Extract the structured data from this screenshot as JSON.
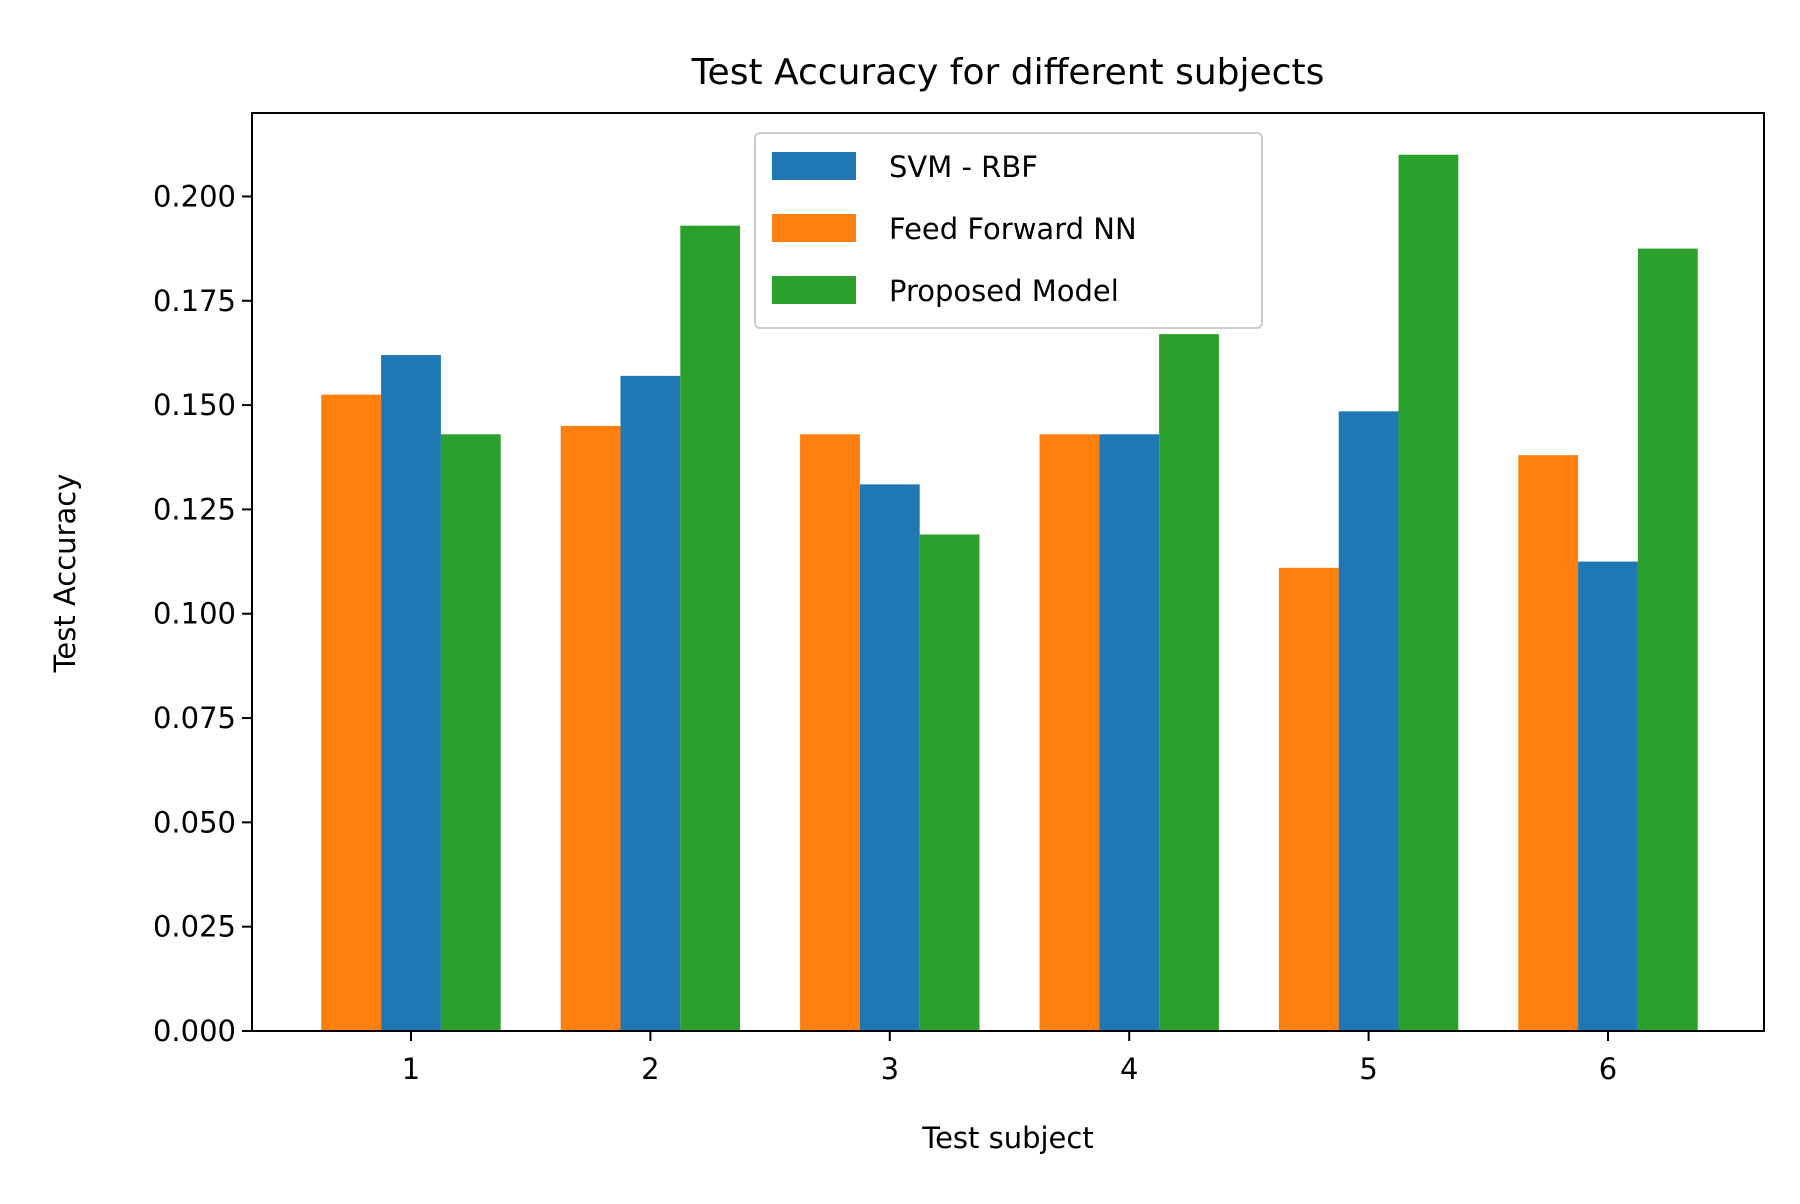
{
  "chart_data": {
    "type": "bar",
    "title": "Test Accuracy for different subjects",
    "xlabel": "Test subject",
    "ylabel": "Test Accuracy",
    "categories": [
      "1",
      "2",
      "3",
      "4",
      "5",
      "6"
    ],
    "ylim": [
      0,
      0.22
    ],
    "yticks": [
      0.0,
      0.025,
      0.05,
      0.075,
      0.1,
      0.125,
      0.15,
      0.175,
      0.2
    ],
    "ytick_labels": [
      "0.000",
      "0.025",
      "0.050",
      "0.075",
      "0.100",
      "0.125",
      "0.150",
      "0.175",
      "0.200"
    ],
    "grid": false,
    "legend_position": "top-center",
    "series": [
      {
        "name": "Feed Forward NN",
        "color": "#ff7f0e",
        "values": [
          0.1525,
          0.145,
          0.143,
          0.143,
          0.111,
          0.138
        ]
      },
      {
        "name": "SVM - RBF",
        "color": "#1f77b4",
        "values": [
          0.162,
          0.157,
          0.131,
          0.143,
          0.1485,
          0.1125
        ]
      },
      {
        "name": "Proposed Model",
        "color": "#2ca02c",
        "values": [
          0.143,
          0.193,
          0.119,
          0.167,
          0.21,
          0.1875
        ]
      }
    ],
    "legend_order": [
      "SVM - RBF",
      "Feed Forward NN",
      "Proposed Model"
    ]
  }
}
